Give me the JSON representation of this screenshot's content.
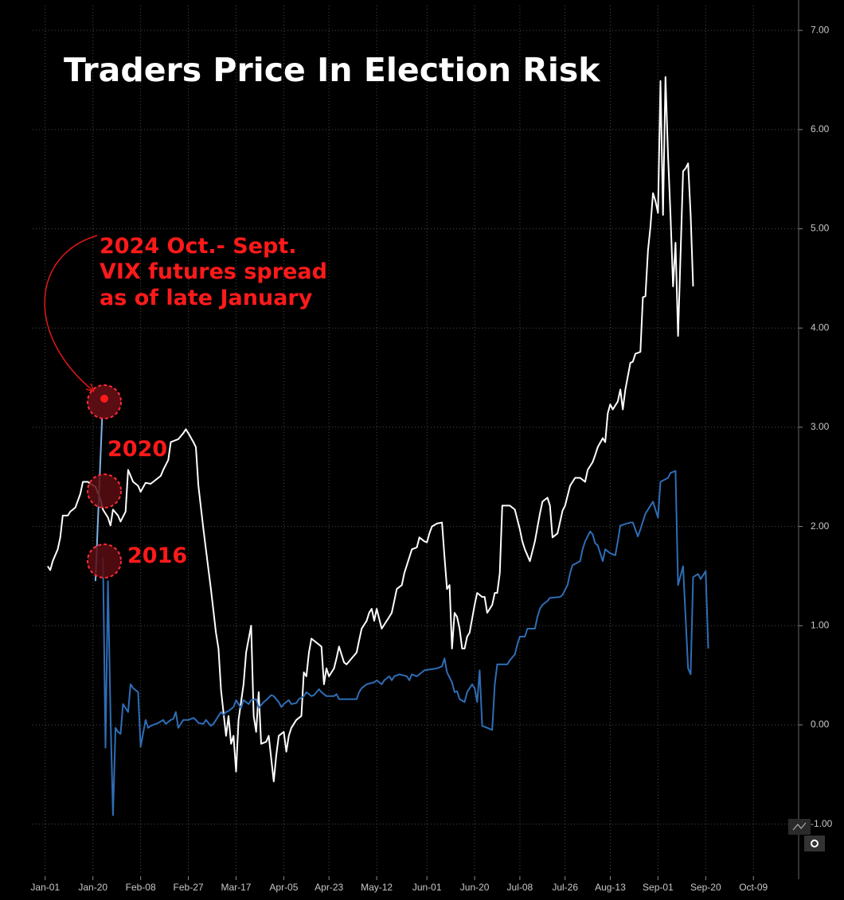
{
  "chart_data": {
    "type": "line",
    "title": "Traders Price In Election Risk",
    "annotations": [
      "2024 Oct.- Sept.",
      "VIX futures spread",
      "as of late January",
      "2020",
      "2016"
    ],
    "xlim": [
      -5,
      300
    ],
    "xticks": [
      {
        "value": 0,
        "label": "Jan-01"
      },
      {
        "value": 19,
        "label": "Jan-20"
      },
      {
        "value": 38,
        "label": "Feb-08"
      },
      {
        "value": 57,
        "label": "Feb-27"
      },
      {
        "value": 76,
        "label": "Mar-17"
      },
      {
        "value": 95,
        "label": "Apr-05"
      },
      {
        "value": 113,
        "label": "Apr-23"
      },
      {
        "value": 132,
        "label": "May-12"
      },
      {
        "value": 152,
        "label": "Jun-01"
      },
      {
        "value": 171,
        "label": "Jun-20"
      },
      {
        "value": 189,
        "label": "Jul-08"
      },
      {
        "value": 207,
        "label": "Jul-26"
      },
      {
        "value": 225,
        "label": "Aug-13"
      },
      {
        "value": 244,
        "label": "Sep-01"
      },
      {
        "value": 263,
        "label": "Sep-20"
      },
      {
        "value": 282,
        "label": "Oct-09"
      }
    ],
    "ylim": [
      -1.5,
      7.25
    ],
    "yticks": [
      {
        "value": -1,
        "label": "-1.00"
      },
      {
        "value": 0,
        "label": "0.00"
      },
      {
        "value": 1,
        "label": "1.00"
      },
      {
        "value": 2,
        "label": "2.00"
      },
      {
        "value": 3,
        "label": "3.00"
      },
      {
        "value": 4,
        "label": "4.00"
      },
      {
        "value": 5,
        "label": "5.00"
      },
      {
        "value": 6,
        "label": "6.00"
      },
      {
        "value": 7,
        "label": "7.00"
      }
    ],
    "grid": true,
    "series": [
      {
        "color": "#ffffff",
        "x": [
          1,
          2,
          3,
          5,
          6,
          7,
          9,
          10,
          12,
          14,
          15,
          17,
          18,
          20,
          22,
          23,
          25,
          26,
          27,
          29,
          30,
          32,
          33,
          35,
          37,
          38,
          40,
          42,
          44,
          46,
          47,
          49,
          50,
          52,
          53,
          55,
          56,
          57,
          59,
          60,
          61,
          63,
          64,
          66,
          68,
          69,
          70,
          72,
          73,
          74,
          75,
          76,
          77,
          79,
          80,
          82,
          83,
          84,
          85,
          86,
          88,
          89,
          91,
          92,
          93,
          95,
          96,
          97,
          98,
          100,
          102,
          103,
          104,
          105,
          106,
          108,
          110,
          111,
          112,
          113,
          115,
          116,
          117,
          119,
          120,
          122,
          124,
          125,
          126,
          128,
          129,
          130,
          131,
          132,
          134,
          135,
          137,
          138,
          139,
          140,
          142,
          143,
          144,
          146,
          148,
          149,
          151,
          152,
          153,
          154,
          156,
          158,
          159,
          160,
          161,
          162,
          163,
          164,
          165,
          166,
          167,
          168,
          169,
          171,
          172,
          174,
          175,
          176,
          178,
          179,
          180,
          181,
          182,
          185,
          187,
          189,
          190,
          191,
          193,
          195,
          197,
          198,
          200,
          201,
          202,
          204,
          206,
          207,
          209,
          210,
          211,
          213,
          215,
          216,
          218,
          219,
          220,
          222,
          223,
          224,
          225,
          226,
          228,
          229,
          230,
          231,
          233,
          234,
          235,
          237,
          238,
          239,
          240,
          241,
          242,
          243,
          244,
          245,
          246,
          247,
          248,
          249,
          250,
          251,
          252,
          254,
          255,
          256,
          257,
          258
        ],
        "values": [
          1.6,
          1.56,
          1.65,
          1.77,
          1.89,
          2.11,
          2.11,
          2.15,
          2.19,
          2.33,
          2.45,
          2.45,
          2.43,
          2.4,
          2.27,
          2.17,
          2.09,
          2.01,
          2.17,
          2.11,
          2.05,
          2.15,
          2.57,
          2.45,
          2.41,
          2.35,
          2.44,
          2.43,
          2.47,
          2.51,
          2.57,
          2.67,
          2.85,
          2.87,
          2.88,
          2.94,
          2.98,
          2.94,
          2.85,
          2.8,
          2.41,
          1.97,
          1.77,
          1.37,
          0.93,
          0.77,
          0.35,
          -0.11,
          0.09,
          -0.19,
          -0.11,
          -0.47,
          0.05,
          0.41,
          0.73,
          1.0,
          0.09,
          -0.07,
          0.33,
          -0.19,
          -0.17,
          -0.11,
          -0.57,
          -0.31,
          -0.11,
          -0.07,
          -0.27,
          -0.11,
          -0.03,
          0.05,
          0.09,
          0.53,
          0.49,
          0.73,
          0.87,
          0.83,
          0.79,
          0.41,
          0.57,
          0.49,
          0.57,
          0.67,
          0.79,
          0.63,
          0.61,
          0.67,
          0.73,
          0.85,
          0.97,
          1.05,
          1.13,
          1.17,
          1.05,
          1.17,
          0.97,
          1.01,
          1.09,
          1.13,
          1.25,
          1.37,
          1.41,
          1.53,
          1.61,
          1.77,
          1.79,
          1.89,
          1.85,
          1.84,
          1.93,
          2.0,
          2.03,
          2.04,
          1.69,
          1.37,
          1.41,
          0.77,
          1.13,
          1.09,
          0.97,
          0.77,
          0.77,
          0.89,
          0.93,
          1.21,
          1.33,
          1.29,
          1.29,
          1.13,
          1.21,
          1.33,
          1.33,
          1.53,
          2.21,
          2.21,
          2.17,
          1.97,
          1.85,
          1.77,
          1.65,
          1.85,
          2.13,
          2.25,
          2.29,
          2.21,
          1.89,
          1.93,
          2.16,
          2.21,
          2.41,
          2.45,
          2.49,
          2.49,
          2.45,
          2.57,
          2.65,
          2.72,
          2.8,
          2.89,
          2.85,
          3.14,
          3.23,
          3.18,
          3.26,
          3.38,
          3.18,
          3.38,
          3.65,
          3.66,
          3.74,
          3.76,
          4.31,
          4.32,
          4.78,
          5.02,
          5.36,
          5.28,
          5.16,
          6.49,
          5.14,
          6.53,
          5.74,
          5.14,
          4.42,
          4.86,
          3.92,
          5.58,
          5.61,
          5.66,
          5.14,
          4.42
        ]
      },
      {
        "color": "#2f6db5",
        "x": [
          23,
          24,
          25,
          26,
          27,
          28,
          29,
          30,
          31,
          33,
          34,
          35,
          37,
          38,
          40,
          41,
          42,
          44,
          45,
          47,
          48,
          50,
          51,
          52,
          53,
          55,
          56,
          57,
          59,
          60,
          61,
          63,
          64,
          66,
          67,
          69,
          70,
          71,
          72,
          73,
          75,
          76,
          77,
          78,
          79,
          81,
          82,
          84,
          85,
          87,
          88,
          90,
          91,
          93,
          94,
          95,
          97,
          98,
          100,
          101,
          103,
          104,
          106,
          107,
          109,
          110,
          112,
          115,
          116,
          117,
          124,
          125,
          126,
          128,
          131,
          132,
          134,
          135,
          137,
          138,
          139,
          141,
          144,
          145,
          146,
          148,
          149,
          151,
          156,
          158,
          159,
          160,
          162,
          163,
          164,
          165,
          167,
          168,
          170,
          171,
          172,
          173,
          174,
          176,
          178,
          179,
          180,
          184,
          185,
          187,
          188,
          189,
          191,
          192,
          195,
          196,
          197,
          198,
          200,
          201,
          205,
          206,
          208,
          209,
          210,
          213,
          214,
          215,
          217,
          218,
          219,
          220,
          222,
          223,
          225,
          227,
          228,
          229,
          233,
          234,
          236,
          237,
          238,
          239,
          240,
          242,
          243,
          244,
          245,
          248,
          249,
          251,
          252,
          254,
          256,
          257,
          258,
          260,
          261,
          263,
          264
        ],
        "values": [
          1.69,
          -0.23,
          1.45,
          0.09,
          -0.91,
          -0.03,
          -0.07,
          -0.09,
          0.21,
          0.13,
          0.41,
          0.37,
          0.33,
          -0.22,
          0.05,
          -0.03,
          -0.01,
          0.01,
          0.02,
          0.05,
          0.01,
          0.05,
          0.06,
          0.13,
          -0.03,
          0.05,
          0.05,
          0.05,
          0.07,
          0.05,
          0.02,
          0.01,
          0.05,
          -0.01,
          0.01,
          0.09,
          0.13,
          0.1,
          0.13,
          0.14,
          0.18,
          0.25,
          0.21,
          0.17,
          0.25,
          0.21,
          0.25,
          0.26,
          0.17,
          0.23,
          0.25,
          0.3,
          0.29,
          0.23,
          0.18,
          0.21,
          0.25,
          0.21,
          0.22,
          0.26,
          0.29,
          0.33,
          0.29,
          0.3,
          0.36,
          0.33,
          0.29,
          0.29,
          0.31,
          0.26,
          0.26,
          0.33,
          0.37,
          0.41,
          0.43,
          0.45,
          0.41,
          0.45,
          0.49,
          0.45,
          0.49,
          0.51,
          0.49,
          0.45,
          0.51,
          0.49,
          0.51,
          0.55,
          0.57,
          0.59,
          0.67,
          0.53,
          0.43,
          0.33,
          0.34,
          0.26,
          0.23,
          0.33,
          0.41,
          0.37,
          0.23,
          0.55,
          -0.01,
          -0.03,
          -0.05,
          0.41,
          0.61,
          0.61,
          0.65,
          0.71,
          0.81,
          0.89,
          0.89,
          0.97,
          0.97,
          1.09,
          1.17,
          1.21,
          1.25,
          1.28,
          1.29,
          1.31,
          1.41,
          1.53,
          1.61,
          1.65,
          1.77,
          1.85,
          1.95,
          1.92,
          1.83,
          1.81,
          1.65,
          1.77,
          1.73,
          1.71,
          1.85,
          2.01,
          2.04,
          2.04,
          1.9,
          1.97,
          2.05,
          2.13,
          2.17,
          2.25,
          2.17,
          2.09,
          2.45,
          2.49,
          2.54,
          2.56,
          1.41,
          1.6,
          0.57,
          0.51,
          1.49,
          1.52,
          1.47,
          1.55,
          0.77
        ]
      },
      {
        "color": "#7fb2e5",
        "x": [
          20,
          23
        ],
        "values": [
          1.45,
          3.3
        ]
      }
    ]
  }
}
